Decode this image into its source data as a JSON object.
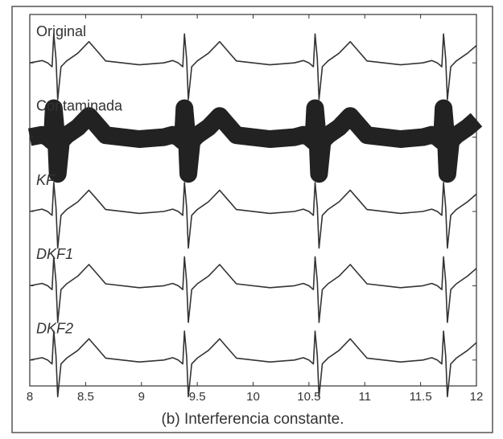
{
  "chart_data": {
    "type": "line",
    "caption": "(b) Interferencia constante.",
    "x": [
      8.0,
      8.11,
      8.16,
      8.2,
      8.215,
      8.235,
      8.25,
      8.28,
      8.33,
      8.43,
      8.53,
      8.59,
      8.68,
      8.98,
      9.2,
      9.28,
      9.33,
      9.37,
      9.385,
      9.405,
      9.42,
      9.45,
      9.5,
      9.6,
      9.7,
      9.76,
      9.85,
      10.15,
      10.37,
      10.45,
      10.5,
      10.54,
      10.555,
      10.575,
      10.59,
      10.62,
      10.67,
      10.77,
      10.87,
      10.93,
      11.02,
      11.32,
      11.52,
      11.6,
      11.65,
      11.69,
      11.705,
      11.725,
      11.74,
      11.77,
      11.82,
      11.92,
      12.0
    ],
    "series": [
      {
        "name": "Original",
        "color": "#333333",
        "values": [
          0,
          0.06,
          0,
          -0.1,
          0.75,
          0.1,
          -0.95,
          -0.1,
          0.05,
          0.25,
          0.55,
          0.35,
          0.05,
          -0.05,
          0,
          0.06,
          0,
          -0.1,
          0.75,
          0.1,
          -0.95,
          -0.1,
          0.05,
          0.25,
          0.55,
          0.35,
          0.05,
          -0.05,
          0,
          0.06,
          0,
          -0.1,
          0.75,
          0.1,
          -0.95,
          -0.1,
          0.05,
          0.25,
          0.55,
          0.35,
          0.05,
          -0.05,
          0,
          0.06,
          0,
          -0.1,
          0.75,
          0.1,
          -0.95,
          -0.1,
          0.05,
          0.25,
          0.45
        ]
      },
      {
        "name": "Contaminada",
        "color": "#222222",
        "values": [
          0,
          0.06,
          0,
          -0.1,
          0.75,
          0.1,
          -0.95,
          -0.1,
          0.05,
          0.25,
          0.55,
          0.35,
          0.05,
          -0.05,
          0,
          0.06,
          0,
          -0.1,
          0.75,
          0.1,
          -0.95,
          -0.1,
          0.05,
          0.25,
          0.55,
          0.35,
          0.05,
          -0.05,
          0,
          0.06,
          0,
          -0.1,
          0.75,
          0.1,
          -0.95,
          -0.1,
          0.05,
          0.25,
          0.55,
          0.35,
          0.05,
          -0.05,
          0,
          0.06,
          0,
          -0.1,
          0.75,
          0.1,
          -0.95,
          -0.1,
          0.05,
          0.25,
          0.45
        ]
      },
      {
        "name": "KF",
        "color": "#333333",
        "values": [
          0,
          0.06,
          0,
          -0.1,
          0.75,
          0.1,
          -0.95,
          -0.1,
          0.05,
          0.25,
          0.55,
          0.35,
          0.05,
          -0.05,
          0,
          0.06,
          0,
          -0.1,
          0.75,
          0.1,
          -0.95,
          -0.1,
          0.05,
          0.25,
          0.55,
          0.35,
          0.05,
          -0.05,
          0,
          0.06,
          0,
          -0.1,
          0.75,
          0.1,
          -0.95,
          -0.1,
          0.05,
          0.25,
          0.55,
          0.35,
          0.05,
          -0.05,
          0,
          0.06,
          0,
          -0.1,
          0.75,
          0.1,
          -0.95,
          -0.1,
          0.05,
          0.25,
          0.45
        ]
      },
      {
        "name": "DKF1",
        "color": "#333333",
        "values": [
          0,
          0.06,
          0,
          -0.1,
          0.75,
          0.1,
          -0.95,
          -0.1,
          0.05,
          0.25,
          0.55,
          0.35,
          0.05,
          -0.05,
          0,
          0.06,
          0,
          -0.1,
          0.75,
          0.1,
          -0.95,
          -0.1,
          0.05,
          0.25,
          0.55,
          0.35,
          0.05,
          -0.05,
          0,
          0.06,
          0,
          -0.1,
          0.75,
          0.1,
          -0.95,
          -0.1,
          0.05,
          0.25,
          0.55,
          0.35,
          0.05,
          -0.05,
          0,
          0.06,
          0,
          -0.1,
          0.75,
          0.1,
          -0.95,
          -0.1,
          0.05,
          0.25,
          0.45
        ]
      },
      {
        "name": "DKF2",
        "color": "#333333",
        "values": [
          0,
          0.06,
          0,
          -0.1,
          0.75,
          0.1,
          -0.95,
          -0.1,
          0.05,
          0.25,
          0.55,
          0.35,
          0.05,
          -0.05,
          0,
          0.06,
          0,
          -0.1,
          0.75,
          0.1,
          -0.95,
          -0.1,
          0.05,
          0.25,
          0.55,
          0.35,
          0.05,
          -0.05,
          0,
          0.06,
          0,
          -0.1,
          0.75,
          0.1,
          -0.95,
          -0.1,
          0.05,
          0.25,
          0.55,
          0.35,
          0.05,
          -0.05,
          0,
          0.06,
          0,
          -0.1,
          0.75,
          0.1,
          -0.95,
          -0.1,
          0.05,
          0.25,
          0.45
        ]
      }
    ],
    "xlim": [
      8,
      12
    ],
    "xticks": [
      8,
      8.5,
      9,
      9.5,
      10,
      10.5,
      11,
      11.5,
      12
    ],
    "ylim": [
      -1,
      1
    ]
  }
}
